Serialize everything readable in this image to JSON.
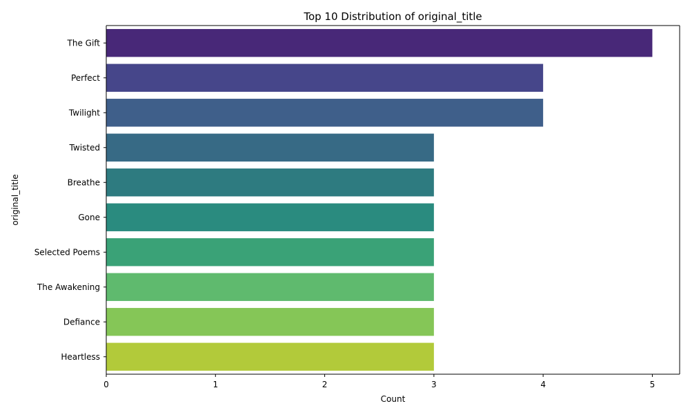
{
  "chart_data": {
    "type": "bar",
    "orientation": "horizontal",
    "title": "Top 10 Distribution of original_title",
    "xlabel": "Count",
    "ylabel": "original_title",
    "categories": [
      "The Gift",
      "Perfect",
      "Twilight",
      "Twisted",
      "Breathe",
      "Gone",
      "Selected Poems",
      "The Awakening",
      "Defiance",
      "Heartless"
    ],
    "values": [
      5,
      4,
      4,
      3,
      3,
      3,
      3,
      3,
      3,
      3
    ],
    "colors": [
      "#482878",
      "#46468a",
      "#3f5f8a",
      "#376a85",
      "#2e7b80",
      "#2a8b7f",
      "#3aa277",
      "#5fba6e",
      "#85c657",
      "#b2ca3a"
    ],
    "xlim": [
      0,
      5.25
    ],
    "xticks": [
      "0",
      "1",
      "2",
      "3",
      "4",
      "5"
    ],
    "grid": false,
    "legend": "none"
  }
}
